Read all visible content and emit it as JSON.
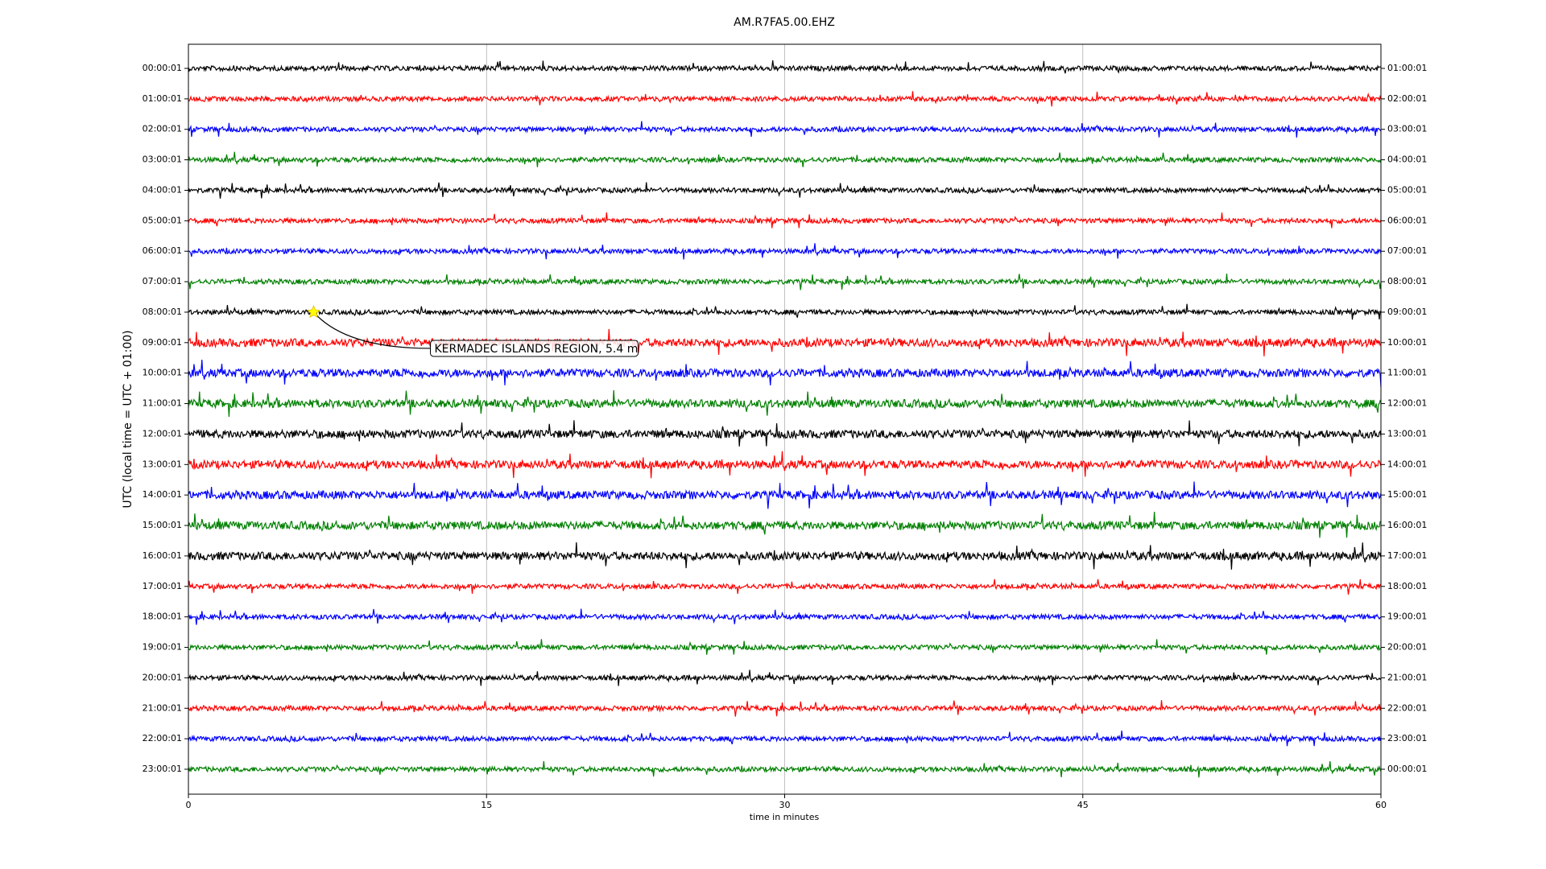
{
  "chart_data": {
    "type": "helicorder",
    "title": "AM.R7FA5.00.EHZ",
    "xlabel": "time in minutes",
    "ylabel": "UTC (local time = UTC + 01:00)",
    "xlim": [
      0,
      60
    ],
    "xticks": [
      0,
      15,
      30,
      45,
      60
    ],
    "grid": true,
    "colors": [
      "#000000",
      "#ff0000",
      "#0000ff",
      "#008000"
    ],
    "categories": [
      "00:00:01",
      "01:00:01",
      "02:00:01",
      "03:00:01",
      "04:00:01",
      "05:00:01",
      "06:00:01",
      "07:00:01",
      "08:00:01",
      "09:00:01",
      "10:00:01",
      "11:00:01",
      "12:00:01",
      "13:00:01",
      "14:00:01",
      "15:00:01",
      "16:00:01",
      "17:00:01",
      "18:00:01",
      "19:00:01",
      "20:00:01",
      "21:00:01",
      "22:00:01",
      "23:00:01"
    ],
    "right_labels": [
      "01:00:01",
      "02:00:01",
      "03:00:01",
      "04:00:01",
      "05:00:01",
      "06:00:01",
      "07:00:01",
      "08:00:01",
      "09:00:01",
      "10:00:01",
      "11:00:01",
      "12:00:01",
      "13:00:01",
      "14:00:01",
      "15:00:01",
      "16:00:01",
      "17:00:01",
      "18:00:01",
      "19:00:01",
      "20:00:01",
      "21:00:01",
      "22:00:01",
      "23:00:01",
      "00:00:01"
    ],
    "annotation": {
      "text": "KERMADEC ISLANDS REGION, 5.4 m",
      "x": 6.3,
      "row": "08:00:01"
    }
  }
}
